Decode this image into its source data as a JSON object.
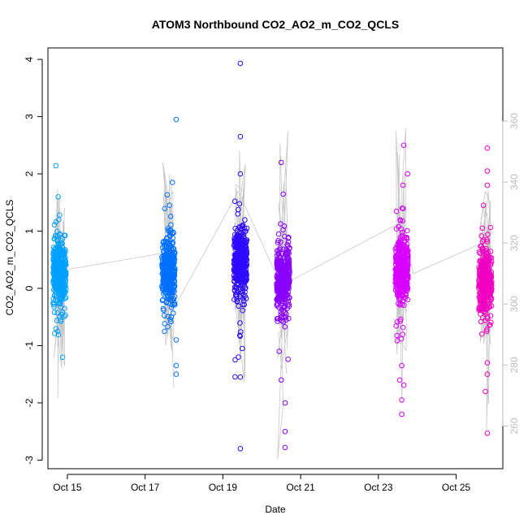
{
  "chart_data": {
    "type": "scatter",
    "title": "ATOM3 Northbound CO2_AO2_m_CO2_QCLS",
    "xlabel": "Date",
    "ylabel": "CO2_AO2_m_CO2_QCLS",
    "x_ticks": [
      "Oct 15",
      "Oct 17",
      "Oct 19",
      "Oct 21",
      "Oct 23",
      "Oct 25"
    ],
    "x_tick_days": [
      15,
      17,
      19,
      21,
      23,
      25
    ],
    "xlim_days": [
      14.5,
      26.2
    ],
    "ylim": [
      -3.15,
      4.2
    ],
    "y_ticks": [
      -3,
      -2,
      -1,
      0,
      1,
      2,
      3,
      4
    ],
    "y2lim": [
      246,
      384
    ],
    "y2_ticks": [
      260,
      280,
      300,
      320,
      340,
      360
    ],
    "grid": false,
    "series": [
      {
        "day": 14.8,
        "center": 0.25,
        "color": "#00a0ff",
        "outliers": [
          {
            "x": 14.8,
            "y": 1.28
          },
          {
            "x": 14.78,
            "y": 1.2
          },
          {
            "x": 14.75,
            "y": -0.75
          },
          {
            "x": 14.8,
            "y": -0.5
          },
          {
            "x": 14.77,
            "y": -0.81
          }
        ]
      },
      {
        "day": 17.6,
        "center": 0.3,
        "color": "#0070ff",
        "outliers": [
          {
            "x": 17.8,
            "y": 2.95
          },
          {
            "x": 17.8,
            "y": -1.35
          },
          {
            "x": 17.8,
            "y": -1.5
          },
          {
            "x": 17.7,
            "y": 1.85
          },
          {
            "x": 17.5,
            "y": -0.75
          },
          {
            "x": 17.8,
            "y": -0.9
          }
        ]
      },
      {
        "day": 19.45,
        "center": 0.45,
        "color": "#2e0aff",
        "outliers": [
          {
            "x": 19.45,
            "y": 3.93
          },
          {
            "x": 19.45,
            "y": 2.65
          },
          {
            "x": 19.45,
            "y": 2.0
          },
          {
            "x": 19.45,
            "y": -2.8
          },
          {
            "x": 19.45,
            "y": -1.55
          },
          {
            "x": 19.5,
            "y": -1.05
          },
          {
            "x": 19.4,
            "y": -1.2
          }
        ]
      },
      {
        "day": 20.55,
        "center": 0.15,
        "color": "#8a00ff",
        "outliers": [
          {
            "x": 20.5,
            "y": 2.2
          },
          {
            "x": 20.6,
            "y": -2.0
          },
          {
            "x": 20.6,
            "y": -2.5
          },
          {
            "x": 20.6,
            "y": -2.78
          },
          {
            "x": 20.5,
            "y": -1.6
          },
          {
            "x": 20.45,
            "y": -1.1
          }
        ]
      },
      {
        "day": 23.6,
        "center": 0.3,
        "color": "#d800ff",
        "outliers": [
          {
            "x": 23.65,
            "y": 2.5
          },
          {
            "x": 23.75,
            "y": 2.0
          },
          {
            "x": 23.6,
            "y": -1.95
          },
          {
            "x": 23.6,
            "y": -2.2
          },
          {
            "x": 23.55,
            "y": -1.6
          },
          {
            "x": 23.6,
            "y": -1.35
          }
        ]
      },
      {
        "day": 25.75,
        "center": 0.15,
        "color": "#f000c0",
        "outliers": [
          {
            "x": 25.8,
            "y": 2.45
          },
          {
            "x": 25.8,
            "y": 2.05
          },
          {
            "x": 25.8,
            "y": 1.8
          },
          {
            "x": 25.75,
            "y": -1.8
          },
          {
            "x": 25.8,
            "y": -1.3
          },
          {
            "x": 25.8,
            "y": -1.5
          },
          {
            "x": 25.8,
            "y": -2.53
          },
          {
            "x": 25.7,
            "y": 1.45
          }
        ]
      }
    ],
    "trend_line": [
      {
        "day": 14.85,
        "y2": 311
      },
      {
        "day": 17.6,
        "y2": 317
      },
      {
        "day": 17.8,
        "y2": 300
      },
      {
        "day": 19.4,
        "y2": 337
      },
      {
        "day": 20.5,
        "y2": 306
      },
      {
        "day": 23.6,
        "y2": 327
      },
      {
        "day": 23.9,
        "y2": 310
      },
      {
        "day": 25.85,
        "y2": 321
      }
    ]
  }
}
